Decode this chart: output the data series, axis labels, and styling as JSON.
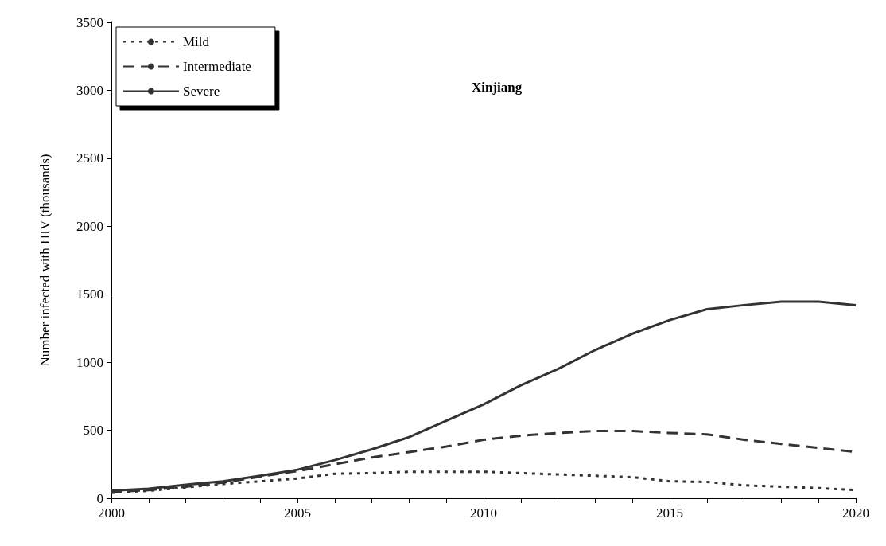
{
  "chart_data": {
    "type": "line",
    "title": "Xinjiang",
    "ylabel": "Number infected with HIV (thousands)",
    "x": [
      2000,
      2001,
      2002,
      2003,
      2004,
      2005,
      2006,
      2007,
      2008,
      2009,
      2010,
      2011,
      2012,
      2013,
      2014,
      2015,
      2016,
      2017,
      2018,
      2019,
      2020
    ],
    "series": [
      {
        "name": "Mild",
        "color": "#333333",
        "line_style": "dotted",
        "values": [
          40,
          55,
          80,
          105,
          125,
          145,
          180,
          185,
          195,
          195,
          195,
          185,
          175,
          165,
          155,
          125,
          120,
          95,
          85,
          75,
          60
        ]
      },
      {
        "name": "Intermediate",
        "color": "#333333",
        "line_style": "dashed",
        "values": [
          45,
          60,
          85,
          115,
          160,
          200,
          250,
          300,
          340,
          380,
          430,
          460,
          480,
          495,
          495,
          480,
          470,
          430,
          400,
          370,
          340
        ]
      },
      {
        "name": "Severe",
        "color": "#333333",
        "line_style": "solid",
        "values": [
          55,
          70,
          100,
          125,
          165,
          210,
          280,
          360,
          450,
          570,
          690,
          830,
          950,
          1090,
          1210,
          1310,
          1390,
          1420,
          1445,
          1445,
          1420
        ]
      }
    ],
    "xlim": [
      2000,
      2020
    ],
    "xticks": [
      2000,
      {
        "value": 2001,
        "label": null
      },
      {
        "value": 2002,
        "label": null
      },
      {
        "value": 2003,
        "label": null
      },
      {
        "value": 2004,
        "label": null
      },
      2005,
      {
        "value": 2006,
        "label": null
      },
      {
        "value": 2007,
        "label": null
      },
      {
        "value": 2008,
        "label": null
      },
      {
        "value": 2009,
        "label": null
      },
      2010,
      {
        "value": 2011,
        "label": null
      },
      {
        "value": 2012,
        "label": null
      },
      {
        "value": 2013,
        "label": null
      },
      {
        "value": 2014,
        "label": null
      },
      2015,
      {
        "value": 2016,
        "label": null
      },
      {
        "value": 2017,
        "label": null
      },
      {
        "value": 2018,
        "label": null
      },
      {
        "value": 2019,
        "label": null
      },
      2020
    ],
    "ylim": [
      0,
      3500
    ],
    "yticks": [
      0,
      500,
      1000,
      1500,
      2000,
      2500,
      3000,
      3500
    ],
    "grid": false,
    "legend": "top left",
    "marker": "none"
  }
}
